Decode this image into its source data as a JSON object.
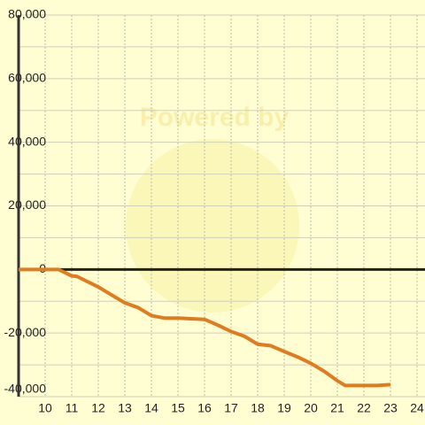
{
  "chart_data": {
    "type": "line",
    "watermark": "Powered by",
    "x": [
      9,
      10,
      10.5,
      11,
      11.2,
      12,
      12.5,
      13,
      13.5,
      14,
      14.5,
      15,
      15.5,
      16,
      16.5,
      17,
      17.5,
      18,
      18.5,
      19,
      19.5,
      20,
      20.5,
      21,
      21.3,
      22,
      22.5,
      23
    ],
    "series": [
      {
        "color": "#e07b20",
        "values": [
          0,
          0,
          0,
          -2000,
          -2200,
          -5500,
          -8000,
          -10500,
          -12000,
          -14500,
          -15300,
          -15300,
          -15500,
          -15700,
          -17500,
          -19500,
          -21000,
          -23500,
          -24000,
          -25800,
          -27500,
          -29500,
          -32000,
          -35000,
          -36500,
          -36500,
          -36500,
          -36200
        ]
      }
    ],
    "xlim": [
      9,
      24.3
    ],
    "xticks": [
      10,
      11,
      12,
      13,
      14,
      15,
      16,
      17,
      18,
      19,
      20,
      21,
      22,
      23,
      24
    ],
    "ylim": [
      -40000,
      80000
    ],
    "yticks": [
      {
        "value": 80000,
        "label": "80,000"
      },
      {
        "value": 60000,
        "label": "60,000"
      },
      {
        "value": 40000,
        "label": "40,000"
      },
      {
        "value": 20000,
        "label": "20,000"
      },
      0,
      {
        "value": -20000,
        "label": "-20,000"
      },
      {
        "value": -40000,
        "label": "-40,000"
      }
    ],
    "y_minor_ticks": [
      70000,
      50000,
      30000,
      10000,
      -10000,
      -30000
    ],
    "grid": true
  }
}
